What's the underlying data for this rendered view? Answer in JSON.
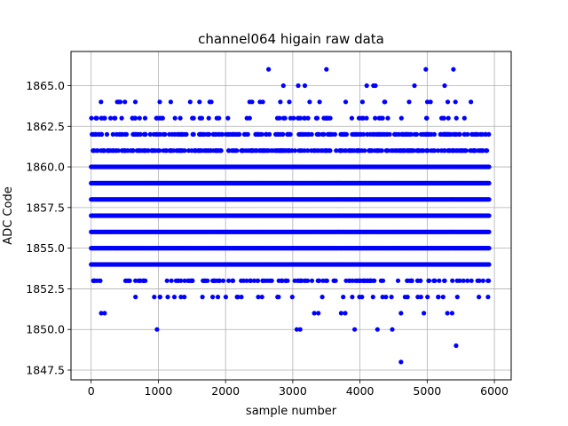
{
  "chart_data": {
    "type": "scatter",
    "title": "channel064 higain raw data",
    "xlabel": "sample number",
    "ylabel": "ADC Code",
    "xlim": [
      -300,
      6250
    ],
    "ylim": [
      1846.9,
      1867.1
    ],
    "x_ticks": [
      0,
      1000,
      2000,
      3000,
      4000,
      5000,
      6000
    ],
    "x_tick_labels": [
      "0",
      "1000",
      "2000",
      "3000",
      "4000",
      "5000",
      "6000"
    ],
    "y_ticks": [
      1847.5,
      1850.0,
      1852.5,
      1855.0,
      1857.5,
      1860.0,
      1862.5,
      1865.0
    ],
    "y_tick_labels": [
      "1847.5",
      "1850.0",
      "1852.5",
      "1855.0",
      "1857.5",
      "1860.0",
      "1862.5",
      "1865.0"
    ],
    "grid": true,
    "marker_color": "#0000ff",
    "x_range": [
      0,
      5930
    ],
    "dense_levels": [
      1854,
      1855,
      1856,
      1857,
      1858,
      1859,
      1860
    ],
    "level_counts": {
      "1853": 150,
      "1861": 300,
      "1862": 220,
      "1863": 75,
      "1864": 30,
      "1852": 40
    },
    "outliers": [
      {
        "x": 150,
        "y": 1851
      },
      {
        "x": 200,
        "y": 1851
      },
      {
        "x": 980,
        "y": 1850
      },
      {
        "x": 2640,
        "y": 1866
      },
      {
        "x": 2860,
        "y": 1865
      },
      {
        "x": 3080,
        "y": 1865
      },
      {
        "x": 3180,
        "y": 1865
      },
      {
        "x": 3060,
        "y": 1850
      },
      {
        "x": 3110,
        "y": 1850
      },
      {
        "x": 3320,
        "y": 1851
      },
      {
        "x": 3380,
        "y": 1851
      },
      {
        "x": 3500,
        "y": 1866
      },
      {
        "x": 3720,
        "y": 1851
      },
      {
        "x": 3780,
        "y": 1851
      },
      {
        "x": 3920,
        "y": 1850
      },
      {
        "x": 4100,
        "y": 1865
      },
      {
        "x": 4200,
        "y": 1865
      },
      {
        "x": 4230,
        "y": 1865
      },
      {
        "x": 4260,
        "y": 1850
      },
      {
        "x": 4480,
        "y": 1850
      },
      {
        "x": 4610,
        "y": 1848
      },
      {
        "x": 4610,
        "y": 1851
      },
      {
        "x": 4950,
        "y": 1851
      },
      {
        "x": 4810,
        "y": 1865
      },
      {
        "x": 4980,
        "y": 1866
      },
      {
        "x": 5260,
        "y": 1865
      },
      {
        "x": 5390,
        "y": 1866
      },
      {
        "x": 5300,
        "y": 1851
      },
      {
        "x": 5370,
        "y": 1851
      },
      {
        "x": 5430,
        "y": 1849
      }
    ]
  }
}
